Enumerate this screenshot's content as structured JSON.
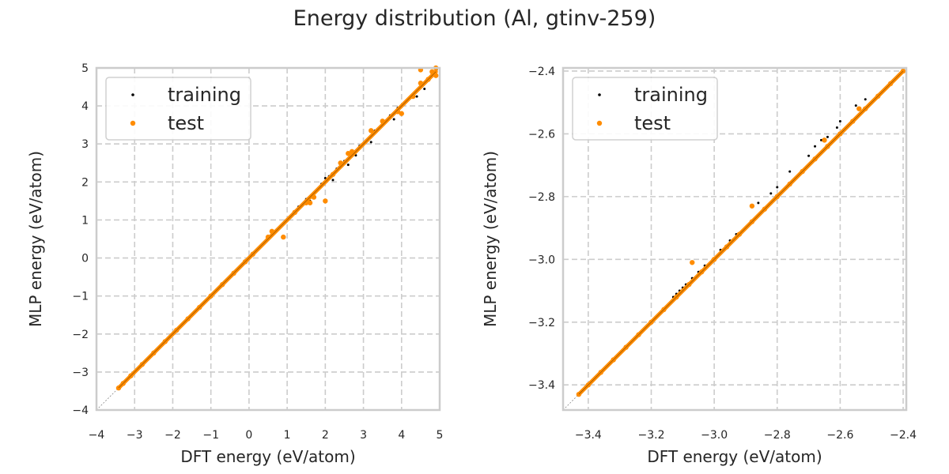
{
  "suptitle": "Energy distribution (Al, gtinv-259)",
  "chart_data": [
    {
      "type": "scatter",
      "title": "",
      "xlabel": "DFT energy (eV/atom)",
      "ylabel": "MLP energy (eV/atom)",
      "xlim": [
        -4,
        5
      ],
      "ylim": [
        -4,
        5
      ],
      "xticks": [
        "−4",
        "−3",
        "−2",
        "−1",
        "0",
        "1",
        "2",
        "3",
        "4",
        "5"
      ],
      "yticks": [
        "−4",
        "−3",
        "−2",
        "−1",
        "0",
        "1",
        "2",
        "3",
        "4",
        "5"
      ],
      "xtick_values": [
        -4,
        -3,
        -2,
        -1,
        0,
        1,
        2,
        3,
        4,
        5
      ],
      "ytick_values": [
        -4,
        -3,
        -2,
        -1,
        0,
        1,
        2,
        3,
        4,
        5
      ],
      "grid": true,
      "legend_position": "upper-left",
      "reference_line": "y = x",
      "series": [
        {
          "name": "training",
          "color": "#000000",
          "points": [
            [
              -3.4,
              -3.4
            ],
            [
              -3.2,
              -3.2
            ],
            [
              -3.0,
              -3.0
            ],
            [
              -2.7,
              -2.7
            ],
            [
              -2.4,
              -2.4
            ],
            [
              -2.1,
              -2.1
            ],
            [
              -1.8,
              -1.8
            ],
            [
              -1.5,
              -1.5
            ],
            [
              -1.2,
              -1.2
            ],
            [
              -0.9,
              -0.9
            ],
            [
              -0.6,
              -0.6
            ],
            [
              -0.3,
              -0.3
            ],
            [
              0.0,
              0.0
            ],
            [
              0.3,
              0.3
            ],
            [
              0.6,
              0.62
            ],
            [
              0.9,
              0.9
            ],
            [
              1.1,
              1.12
            ],
            [
              1.3,
              1.35
            ],
            [
              1.5,
              1.55
            ],
            [
              1.7,
              1.72
            ],
            [
              1.9,
              1.95
            ],
            [
              2.1,
              2.15
            ],
            [
              2.3,
              2.35
            ],
            [
              2.5,
              2.55
            ],
            [
              2.7,
              2.75
            ],
            [
              2.9,
              2.95
            ],
            [
              3.1,
              3.1
            ],
            [
              3.3,
              3.35
            ],
            [
              3.5,
              3.55
            ],
            [
              3.7,
              3.75
            ],
            [
              3.9,
              3.95
            ],
            [
              4.1,
              4.1
            ],
            [
              4.3,
              4.3
            ],
            [
              4.5,
              4.55
            ],
            [
              4.7,
              4.7
            ],
            [
              4.9,
              4.9
            ],
            [
              2.2,
              2.05
            ],
            [
              2.6,
              2.45
            ],
            [
              3.2,
              3.05
            ],
            [
              3.8,
              3.65
            ],
            [
              4.4,
              4.25
            ],
            [
              4.6,
              4.45
            ],
            [
              1.6,
              1.5
            ],
            [
              2.0,
              2.1
            ],
            [
              2.8,
              2.7
            ]
          ]
        },
        {
          "name": "test",
          "color": "#ff8c00",
          "points": [
            [
              -3.42,
              -3.42
            ],
            [
              -3.3,
              -3.3
            ],
            [
              -3.1,
              -3.1
            ],
            [
              -2.8,
              -2.8
            ],
            [
              -2.5,
              -2.5
            ],
            [
              -2.2,
              -2.2
            ],
            [
              -1.9,
              -1.9
            ],
            [
              -1.6,
              -1.6
            ],
            [
              -1.3,
              -1.3
            ],
            [
              -1.0,
              -1.0
            ],
            [
              -0.7,
              -0.7
            ],
            [
              -0.4,
              -0.4
            ],
            [
              -0.1,
              -0.1
            ],
            [
              0.1,
              0.1
            ],
            [
              0.5,
              0.55
            ],
            [
              0.6,
              0.7
            ],
            [
              0.9,
              0.55
            ],
            [
              1.2,
              1.2
            ],
            [
              1.5,
              1.45
            ],
            [
              1.6,
              1.45
            ],
            [
              1.7,
              1.6
            ],
            [
              2.0,
              1.5
            ],
            [
              2.2,
              2.2
            ],
            [
              2.4,
              2.5
            ],
            [
              2.6,
              2.75
            ],
            [
              2.7,
              2.8
            ],
            [
              3.2,
              3.35
            ],
            [
              3.5,
              3.6
            ],
            [
              3.9,
              3.85
            ],
            [
              4.0,
              3.8
            ],
            [
              4.3,
              4.25
            ],
            [
              4.5,
              4.6
            ],
            [
              4.5,
              4.95
            ],
            [
              4.7,
              4.7
            ],
            [
              4.8,
              4.9
            ],
            [
              4.9,
              4.8
            ],
            [
              4.9,
              5.0
            ]
          ]
        }
      ]
    },
    {
      "type": "scatter",
      "title": "",
      "xlabel": "DFT energy (eV/atom)",
      "ylabel": "MLP energy (eV/atom)",
      "xlim": [
        -3.48,
        -2.39
      ],
      "ylim": [
        -3.48,
        -2.39
      ],
      "xticks": [
        "−3.4",
        "−3.2",
        "−3.0",
        "−2.8",
        "−2.6",
        "−2.4"
      ],
      "yticks": [
        "−3.4",
        "−3.2",
        "−3.0",
        "−2.8",
        "−2.6",
        "−2.4"
      ],
      "xtick_values": [
        -3.4,
        -3.2,
        -3.0,
        -2.8,
        -2.6,
        -2.4
      ],
      "ytick_values": [
        -3.4,
        -3.2,
        -3.0,
        -2.8,
        -2.6,
        -2.4
      ],
      "grid": true,
      "legend_position": "upper-left",
      "reference_line": "y = x",
      "series": [
        {
          "name": "training",
          "color": "#000000",
          "points": [
            [
              -3.42,
              -3.42
            ],
            [
              -3.35,
              -3.35
            ],
            [
              -3.3,
              -3.3
            ],
            [
              -3.25,
              -3.25
            ],
            [
              -3.2,
              -3.2
            ],
            [
              -3.15,
              -3.15
            ],
            [
              -3.1,
              -3.1
            ],
            [
              -3.05,
              -3.05
            ],
            [
              -3.0,
              -3.0
            ],
            [
              -2.95,
              -2.95
            ],
            [
              -2.9,
              -2.9
            ],
            [
              -2.85,
              -2.85
            ],
            [
              -2.8,
              -2.8
            ],
            [
              -2.75,
              -2.75
            ],
            [
              -2.7,
              -2.7
            ],
            [
              -2.65,
              -2.65
            ],
            [
              -2.6,
              -2.6
            ],
            [
              -2.55,
              -2.55
            ],
            [
              -2.5,
              -2.5
            ],
            [
              -2.45,
              -2.45
            ],
            [
              -2.4,
              -2.4
            ],
            [
              -3.13,
              -3.12
            ],
            [
              -3.12,
              -3.11
            ],
            [
              -3.11,
              -3.1
            ],
            [
              -3.1,
              -3.09
            ],
            [
              -3.09,
              -3.08
            ],
            [
              -3.07,
              -3.06
            ],
            [
              -3.05,
              -3.04
            ],
            [
              -3.03,
              -3.02
            ],
            [
              -2.98,
              -2.97
            ],
            [
              -2.95,
              -2.94
            ],
            [
              -2.93,
              -2.92
            ],
            [
              -2.91,
              -2.91
            ],
            [
              -2.86,
              -2.82
            ],
            [
              -2.82,
              -2.79
            ],
            [
              -2.8,
              -2.77
            ],
            [
              -2.76,
              -2.72
            ],
            [
              -2.7,
              -2.67
            ],
            [
              -2.64,
              -2.61
            ],
            [
              -2.61,
              -2.58
            ],
            [
              -2.6,
              -2.56
            ],
            [
              -2.55,
              -2.51
            ],
            [
              -2.52,
              -2.49
            ],
            [
              -2.68,
              -2.64
            ],
            [
              -2.66,
              -2.62
            ]
          ]
        },
        {
          "name": "test",
          "color": "#ff8c00",
          "points": [
            [
              -3.43,
              -3.43
            ],
            [
              -3.4,
              -3.4
            ],
            [
              -3.36,
              -3.36
            ],
            [
              -3.32,
              -3.32
            ],
            [
              -3.28,
              -3.28
            ],
            [
              -3.24,
              -3.24
            ],
            [
              -3.2,
              -3.2
            ],
            [
              -3.16,
              -3.16
            ],
            [
              -3.12,
              -3.12
            ],
            [
              -3.08,
              -3.08
            ],
            [
              -3.04,
              -3.04
            ],
            [
              -3.0,
              -3.0
            ],
            [
              -2.96,
              -2.96
            ],
            [
              -2.92,
              -2.92
            ],
            [
              -2.88,
              -2.88
            ],
            [
              -2.84,
              -2.84
            ],
            [
              -2.8,
              -2.8
            ],
            [
              -2.76,
              -2.76
            ],
            [
              -2.72,
              -2.72
            ],
            [
              -2.68,
              -2.68
            ],
            [
              -2.64,
              -2.64
            ],
            [
              -2.6,
              -2.6
            ],
            [
              -2.56,
              -2.56
            ],
            [
              -2.52,
              -2.52
            ],
            [
              -2.48,
              -2.48
            ],
            [
              -2.44,
              -2.44
            ],
            [
              -2.4,
              -2.4
            ],
            [
              -3.07,
              -3.01
            ],
            [
              -2.88,
              -2.83
            ],
            [
              -2.65,
              -2.62
            ],
            [
              -2.54,
              -2.52
            ]
          ]
        }
      ]
    }
  ]
}
